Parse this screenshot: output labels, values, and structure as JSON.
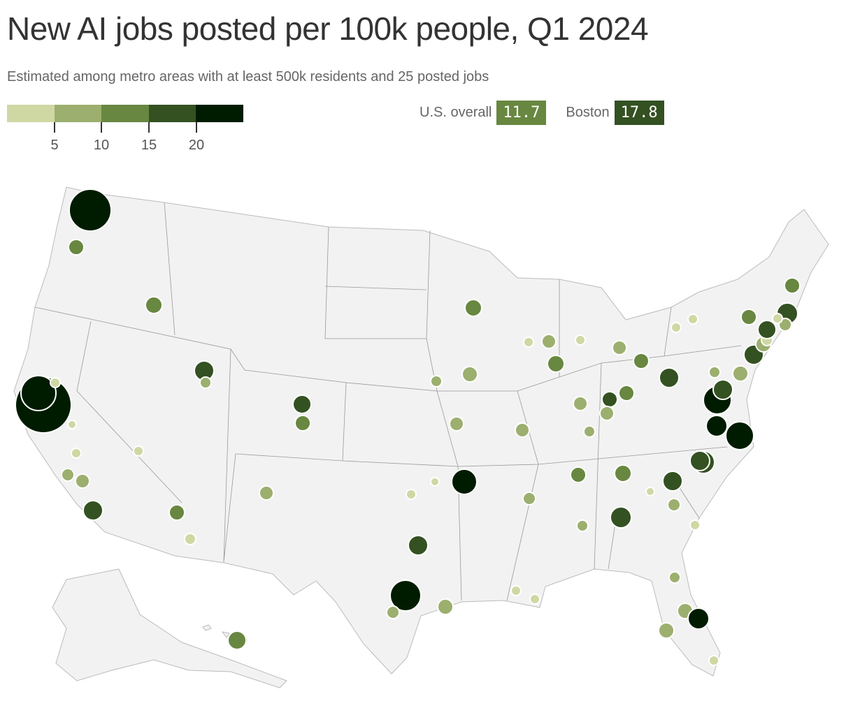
{
  "header": {
    "title": "New AI jobs posted per 100k people, Q1 2024",
    "subtitle": "Estimated among metro areas with at least 500k residents and 25 posted jobs"
  },
  "legend": {
    "colors": [
      "#cfd8a3",
      "#9caf6f",
      "#688740",
      "#345122",
      "#001c00"
    ],
    "tick_labels": [
      "5",
      "10",
      "15",
      "20"
    ]
  },
  "stats": {
    "us_label": "U.S. overall",
    "us_value": "11.7",
    "us_color": "#688740",
    "boston_label": "Boston",
    "boston_value": "17.8",
    "boston_color": "#345122"
  },
  "chart_data": {
    "type": "bubble-map",
    "bins": [
      [
        0,
        5
      ],
      [
        5,
        10
      ],
      [
        10,
        15
      ],
      [
        15,
        20
      ],
      [
        20,
        null
      ]
    ],
    "metro_bins": [
      5,
      3,
      3,
      5,
      5,
      1,
      1,
      1,
      2,
      2,
      4,
      1,
      4,
      2,
      4,
      3,
      3,
      1,
      2,
      3,
      3,
      2,
      2,
      2,
      1,
      1,
      5,
      4,
      5,
      2,
      2,
      1,
      1,
      2,
      2,
      3,
      2,
      1,
      1,
      2,
      2,
      2,
      4,
      2,
      3,
      3,
      4,
      3,
      3,
      2,
      4,
      4,
      1,
      2,
      1,
      5,
      5,
      4,
      4,
      5,
      4,
      2,
      2,
      4,
      2,
      1,
      4,
      2,
      4,
      1,
      3,
      1,
      1,
      3,
      2,
      2,
      2,
      5,
      1
    ]
  }
}
